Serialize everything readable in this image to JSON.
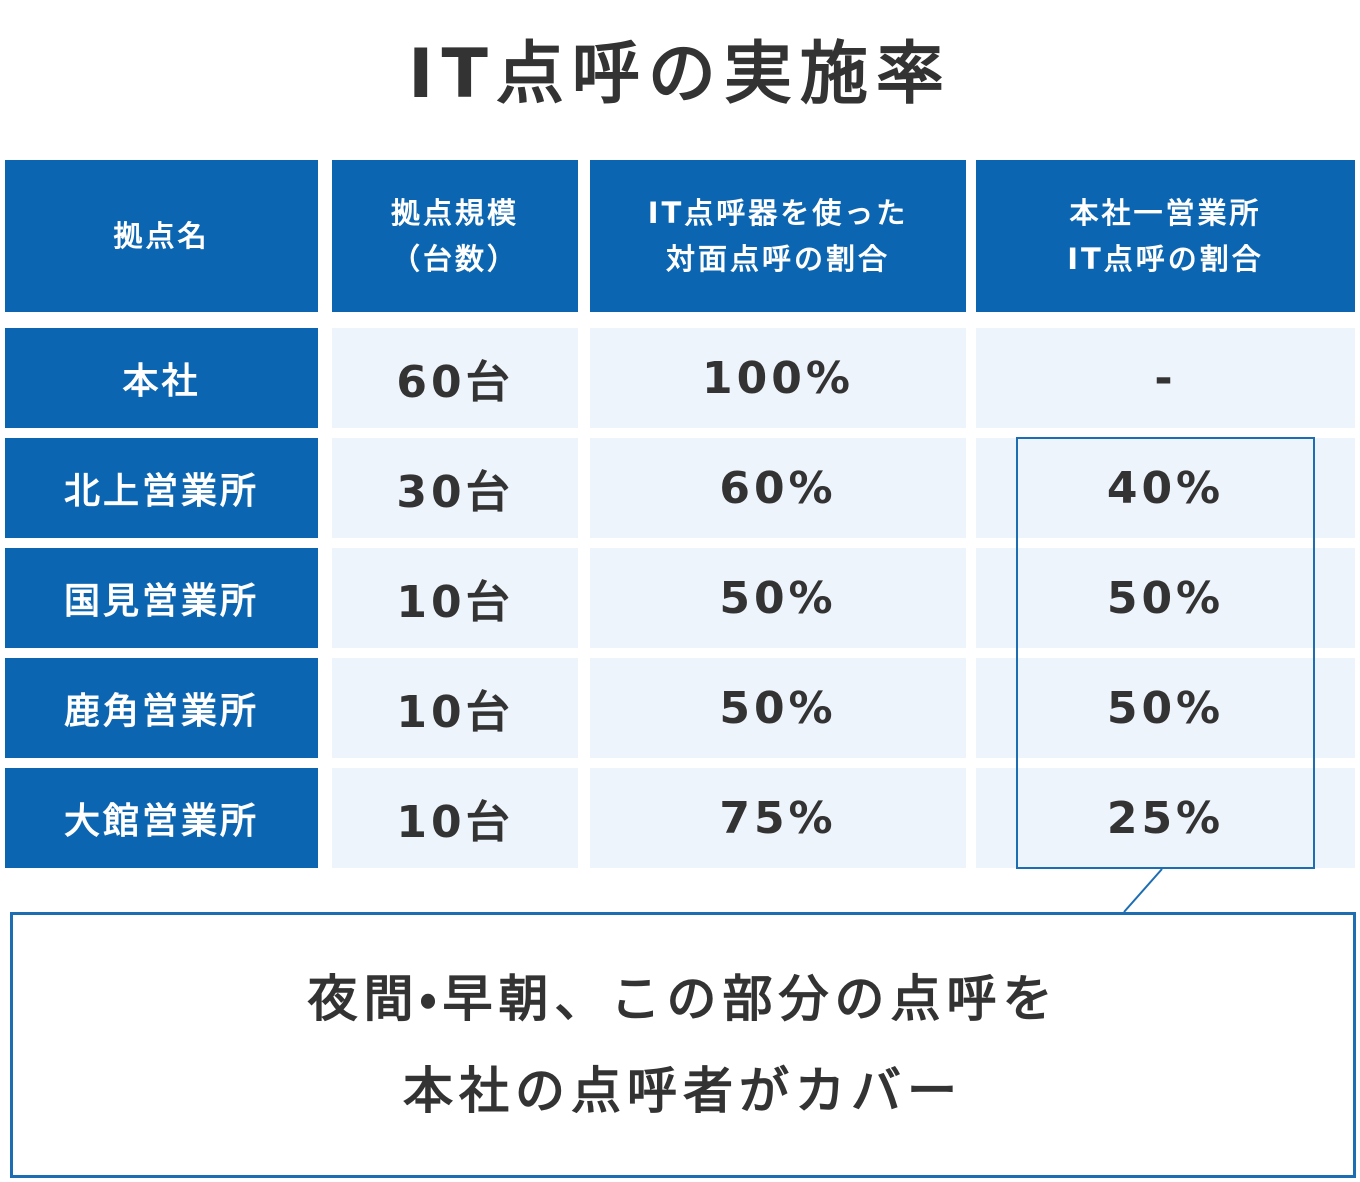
{
  "header": {
    "title": "IT点呼の実施率"
  },
  "table": {
    "columns": [
      [
        "拠点名"
      ],
      [
        "拠点規模",
        "（台数）"
      ],
      [
        "IT点呼器を使った",
        "対面点呼の割合"
      ],
      [
        "本社一営業所",
        "IT点呼の割合"
      ]
    ],
    "rows": [
      [
        "本社",
        "60台",
        "100%",
        "-"
      ],
      [
        "北上営業所",
        "30台",
        "60%",
        "40%"
      ],
      [
        "国見営業所",
        "10台",
        "50%",
        "50%"
      ],
      [
        "鹿角営業所",
        "10台",
        "50%",
        "50%"
      ],
      [
        "大館営業所",
        "10台",
        "75%",
        "25%"
      ]
    ]
  },
  "callout": {
    "lines": [
      "夜間・早朝、この部分の点呼を",
      "本社の点呼者がカバー"
    ]
  }
}
